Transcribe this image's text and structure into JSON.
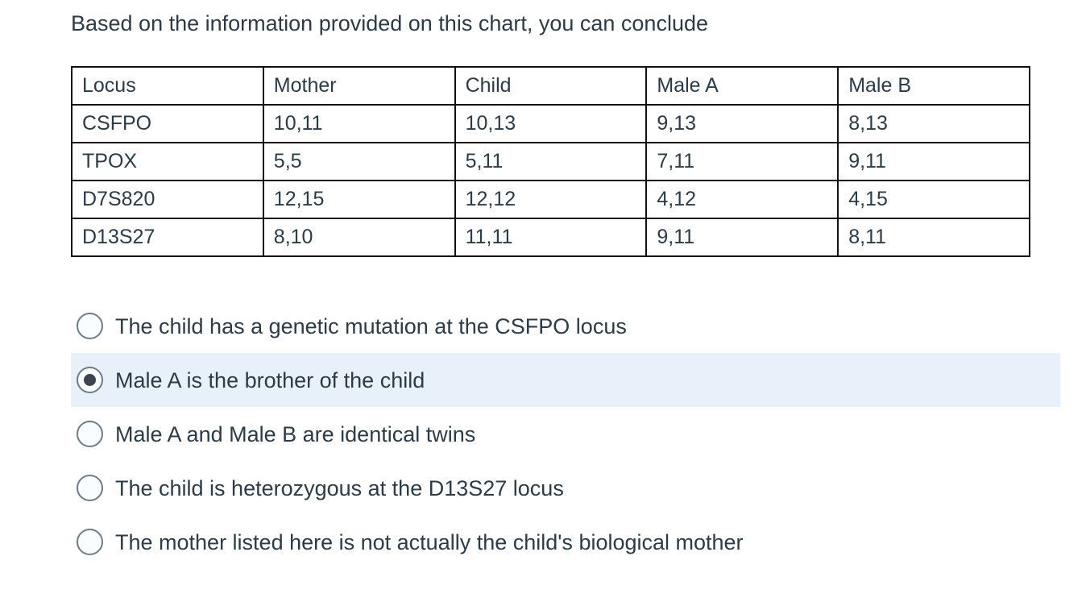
{
  "question": {
    "prompt": "Based on the information provided on this chart, you can conclude"
  },
  "table": {
    "headers": [
      "Locus",
      "Mother",
      "Child",
      "Male A",
      "Male B"
    ],
    "rows": [
      [
        "CSFPO",
        "10,11",
        "10,13",
        "9,13",
        "8,13"
      ],
      [
        "TPOX",
        "5,5",
        "5,11",
        "7,11",
        "9,11"
      ],
      [
        "D7S820",
        "12,15",
        "12,12",
        "4,12",
        "4,15"
      ],
      [
        "D13S27",
        "8,10",
        "11,11",
        "9,11",
        "8,11"
      ]
    ]
  },
  "options": [
    {
      "label": "The child has a genetic mutation at the CSFPO locus",
      "selected": false
    },
    {
      "label": "Male A is the brother of the child",
      "selected": true
    },
    {
      "label": "Male A and Male B are identical twins",
      "selected": false
    },
    {
      "label": "The child is heterozygous at the D13S27 locus",
      "selected": false
    },
    {
      "label": "The mother listed here is not actually the child's biological mother",
      "selected": false
    }
  ],
  "colors": {
    "text": "#2d3b45",
    "table_border": "#111111",
    "selected_highlight": "#e8f0fa",
    "radio_border": "#6f7b85",
    "radio_fill": "#fafdff",
    "radio_dot": "#3d464e",
    "page_bg": "#ffffff"
  }
}
